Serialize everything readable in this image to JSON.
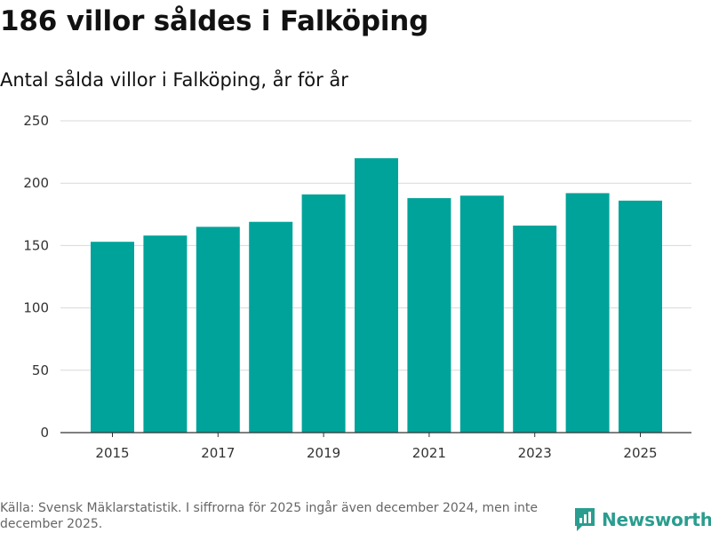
{
  "chart_data": {
    "type": "bar",
    "title": "186 villor såldes i Falköping",
    "subtitle": "Antal sålda villor i Falköping, år för år",
    "categories": [
      "2015",
      "2016",
      "2017",
      "2018",
      "2019",
      "2020",
      "2021",
      "2022",
      "2023",
      "2024",
      "2025"
    ],
    "values": [
      153,
      158,
      165,
      169,
      191,
      220,
      188,
      190,
      166,
      192,
      186
    ],
    "x_tick_labels": [
      "2015",
      "2017",
      "2019",
      "2021",
      "2023",
      "2025"
    ],
    "y_ticks": [
      0,
      50,
      100,
      150,
      200,
      250
    ],
    "ylim": [
      0,
      250
    ],
    "xlabel": "",
    "ylabel": "",
    "grid": true,
    "bar_color": "#00a39a"
  },
  "footer": {
    "source": "Källa: Svensk Mäklarstatistik. I siffrorna för 2025 ingår även december 2024, men inte december 2025.",
    "brand": "Newsworthy",
    "brand_color": "#2a9d8f"
  }
}
